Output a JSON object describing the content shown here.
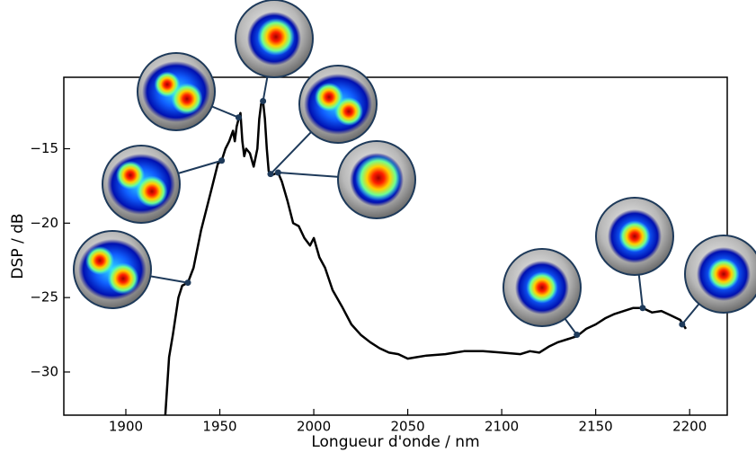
{
  "chart_data": {
    "type": "line",
    "xlabel": "Longueur d'onde / nm",
    "ylabel": "DSP / dB",
    "x": [
      1921,
      1923,
      1925,
      1928,
      1930,
      1933,
      1936,
      1940,
      1943,
      1946,
      1949,
      1951,
      1953,
      1955,
      1957,
      1958,
      1959,
      1960,
      1961,
      1962,
      1963,
      1964,
      1966,
      1968,
      1970,
      1971,
      1972,
      1973,
      1974,
      1975,
      1976,
      1977,
      1979,
      1981,
      1983,
      1986,
      1989,
      1992,
      1995,
      1998,
      2000,
      2003,
      2006,
      2010,
      2015,
      2020,
      2025,
      2030,
      2035,
      2040,
      2045,
      2050,
      2055,
      2060,
      2070,
      2080,
      2090,
      2100,
      2110,
      2115,
      2120,
      2125,
      2130,
      2135,
      2140,
      2145,
      2150,
      2155,
      2160,
      2165,
      2170,
      2175,
      2180,
      2185,
      2190,
      2195,
      2198
    ],
    "values": [
      -32.9,
      -29,
      -27.5,
      -25,
      -24.2,
      -24,
      -23,
      -20.5,
      -19,
      -17.5,
      -16,
      -15.8,
      -15,
      -14.5,
      -13.8,
      -14.5,
      -13.5,
      -13,
      -12.6,
      -14.5,
      -15.5,
      -15,
      -15.3,
      -16.2,
      -15,
      -13,
      -12,
      -11.8,
      -13,
      -15,
      -16.5,
      -16.8,
      -16.7,
      -16.6,
      -17.2,
      -18.5,
      -20,
      -20.2,
      -21,
      -21.5,
      -21,
      -22.3,
      -23,
      -24.5,
      -25.6,
      -26.8,
      -27.5,
      -28,
      -28.4,
      -28.7,
      -28.8,
      -29.1,
      -29,
      -28.9,
      -28.8,
      -28.6,
      -28.6,
      -28.7,
      -28.8,
      -28.6,
      -28.7,
      -28.3,
      -28,
      -27.8,
      -27.6,
      -27.1,
      -26.8,
      -26.4,
      -26.1,
      -25.9,
      -25.7,
      -25.7,
      -26,
      -25.9,
      -26.2,
      -26.5,
      -27.1
    ],
    "color": "#000000",
    "highlight_points": {
      "x": [
        1933,
        1951,
        1960,
        1973,
        1977,
        1981,
        2140,
        2175,
        2196
      ],
      "y": [
        -24,
        -15.8,
        -12.9,
        -11.8,
        -16.7,
        -16.6,
        -27.5,
        -25.7,
        -26.8
      ],
      "color": "#1e3a5a"
    },
    "xlim": [
      1867,
      2220
    ],
    "ylim": [
      -32.9,
      -10.2
    ],
    "xticks": [
      1900,
      1950,
      2000,
      2050,
      2100,
      2150,
      2200
    ],
    "yticks": [
      {
        "value": -30,
        "label": "−30"
      },
      {
        "value": -25,
        "label": "−25"
      },
      {
        "value": -20,
        "label": "−20"
      },
      {
        "value": -15,
        "label": "−15"
      }
    ]
  }
}
